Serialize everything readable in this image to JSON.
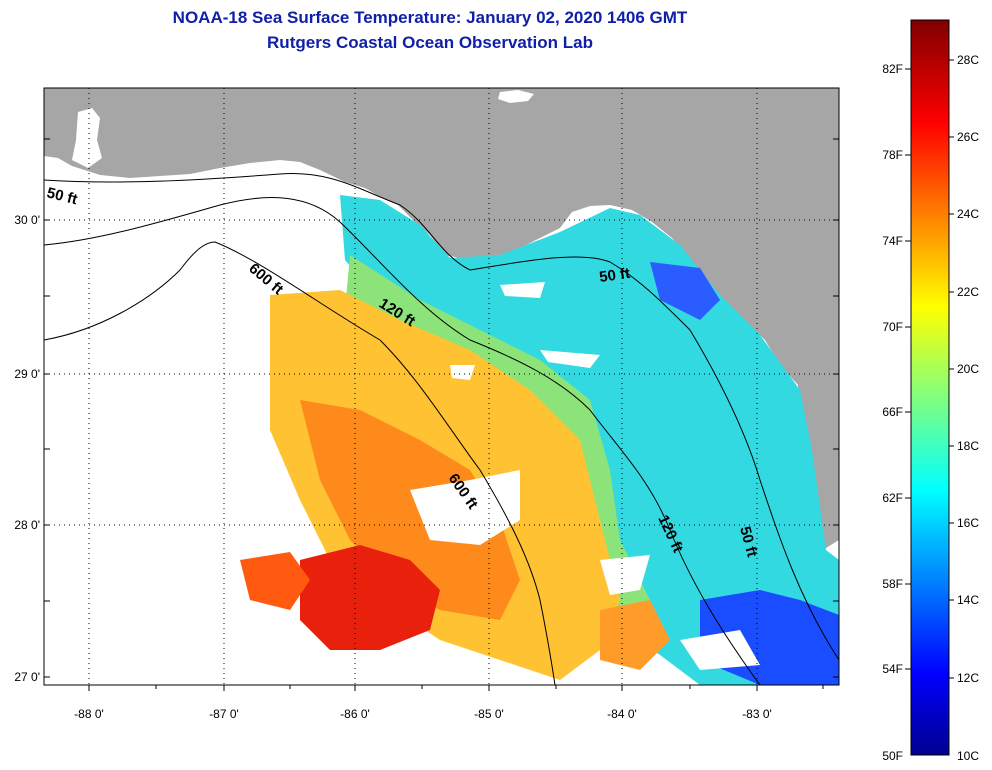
{
  "header": {
    "title": "NOAA-18 Sea Surface Temperature:  January 02, 2020 1406 GMT",
    "subtitle": "Rutgers Coastal Ocean Observation Lab"
  },
  "map": {
    "lat_labels": [
      "30 0'",
      "29 0'",
      "28 0'",
      "27 0'"
    ],
    "lon_labels": [
      "-88 0'",
      "-87 0'",
      "-86 0'",
      "-85 0'",
      "-84 0'",
      "-83 0'"
    ],
    "contour_labels": {
      "c50_west": "50 ft",
      "c50_east": "50 ft",
      "c50_south": "50 ft",
      "c120_north": "120 ft",
      "c120_south": "120 ft",
      "c600_north": "600 ft",
      "c600_south": "600 ft"
    },
    "colors": {
      "land": "#a6a6a6",
      "nodata": "#ffffff"
    }
  },
  "colorbar": {
    "fahrenheit": [
      "82F",
      "78F",
      "74F",
      "70F",
      "66F",
      "62F",
      "58F",
      "54F",
      "50F"
    ],
    "celsius": [
      "28C",
      "26C",
      "24C",
      "22C",
      "20C",
      "18C",
      "16C",
      "14C",
      "12C",
      "10C"
    ],
    "range_c": [
      10,
      29.3
    ],
    "colormap": "jet"
  }
}
